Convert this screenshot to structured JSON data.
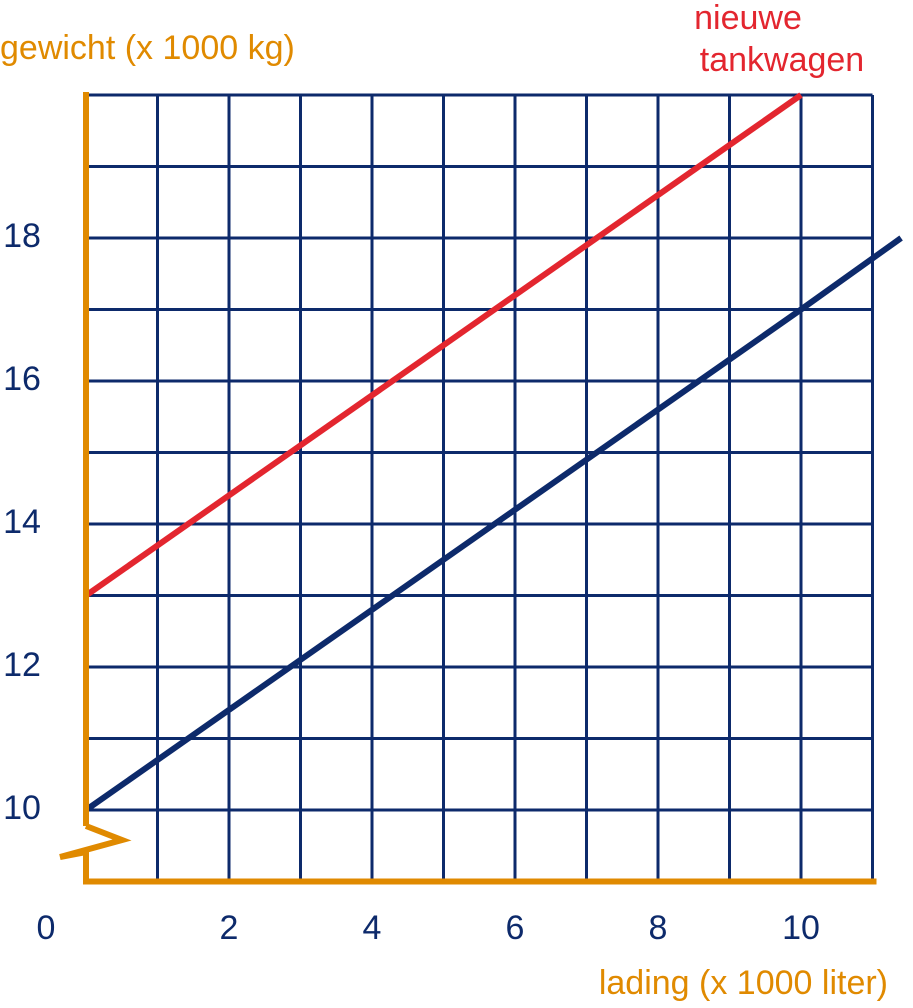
{
  "chart_data": {
    "type": "line",
    "ylabel": "gewicht (x 1000 kg)",
    "xlabel": "lading (x 1000 liter)",
    "annotation": [
      "nieuwe",
      "tankwagen"
    ],
    "series": [
      {
        "color": "#e3262f",
        "x": [
          0,
          10
        ],
        "values": [
          13,
          20
        ]
      },
      {
        "color": "#0d2a6b",
        "x": [
          0,
          10,
          11.4
        ],
        "values": [
          10,
          17,
          18
        ]
      }
    ],
    "xlim": [
      0,
      11
    ],
    "ylim": [
      9,
      20
    ],
    "xticks": [
      0,
      2,
      4,
      6,
      8,
      10
    ],
    "yticks": [
      10,
      12,
      14,
      16,
      18
    ],
    "xminor": [
      1,
      3,
      5,
      7,
      9,
      11
    ],
    "yminor": [
      11,
      13,
      15,
      17,
      19,
      20
    ],
    "grid": true,
    "grid_color": "#0d2a6b",
    "axis_color": "#e08a00"
  }
}
